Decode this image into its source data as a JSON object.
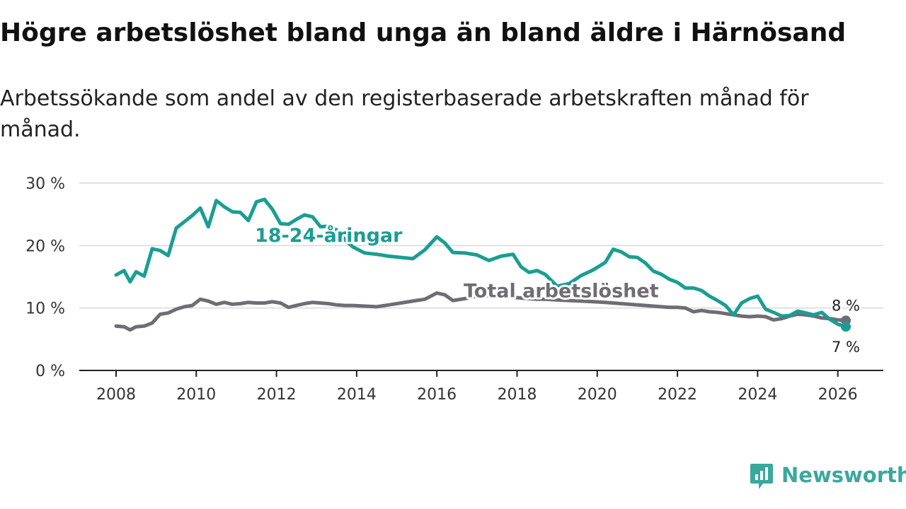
{
  "title": "Högre arbetslöshet bland unga än bland äldre i Härnösand",
  "subtitle": "Arbetssökande som andel av den registerbaserade arbetskraften månad för månad.",
  "brand": {
    "name": "Newsworthy",
    "icon": "newsworthy-logo-icon",
    "color": "#3aa89d"
  },
  "chart_data": {
    "type": "line",
    "title": "Högre arbetslöshet bland unga än bland äldre i Härnösand",
    "subtitle": "Arbetssökande som andel av den registerbaserade arbetskraften månad för månad.",
    "xlabel": "",
    "ylabel": "",
    "xlim": [
      2008,
      2026.2
    ],
    "ylim": [
      0,
      30
    ],
    "grid": true,
    "y_ticks": [
      {
        "value": 0,
        "label": "0 %"
      },
      {
        "value": 10,
        "label": "10 %"
      },
      {
        "value": 20,
        "label": "20 %"
      },
      {
        "value": 30,
        "label": "30 %"
      }
    ],
    "x_ticks": [
      {
        "value": 2008,
        "label": "2008"
      },
      {
        "value": 2010,
        "label": "2010"
      },
      {
        "value": 2012,
        "label": "2012"
      },
      {
        "value": 2014,
        "label": "2014"
      },
      {
        "value": 2016,
        "label": "2016"
      },
      {
        "value": 2018,
        "label": "2018"
      },
      {
        "value": 2020,
        "label": "2020"
      },
      {
        "value": 2022,
        "label": "2022"
      },
      {
        "value": 2024,
        "label": "2024"
      },
      {
        "value": 2026,
        "label": "2026"
      }
    ],
    "series": [
      {
        "name": "18-24-åringar",
        "label": "18-24-åringar",
        "color": "#1a9e92",
        "end_label": "7 %",
        "x": [
          2008.0,
          2008.2,
          2008.35,
          2008.5,
          2008.7,
          2008.9,
          2009.1,
          2009.3,
          2009.5,
          2009.7,
          2009.9,
          2010.1,
          2010.3,
          2010.5,
          2010.7,
          2010.9,
          2011.1,
          2011.3,
          2011.5,
          2011.7,
          2011.9,
          2012.1,
          2012.3,
          2012.5,
          2012.7,
          2012.9,
          2013.1,
          2013.3,
          2013.5,
          2013.7,
          2013.9,
          2014.2,
          2014.5,
          2014.8,
          2015.1,
          2015.4,
          2015.7,
          2016.0,
          2016.2,
          2016.4,
          2016.7,
          2017.0,
          2017.3,
          2017.6,
          2017.9,
          2018.1,
          2018.3,
          2018.5,
          2018.7,
          2019.0,
          2019.3,
          2019.6,
          2019.9,
          2020.2,
          2020.4,
          2020.6,
          2020.8,
          2021.0,
          2021.2,
          2021.4,
          2021.6,
          2021.8,
          2022.0,
          2022.2,
          2022.4,
          2022.6,
          2022.8,
          2023.0,
          2023.2,
          2023.4,
          2023.6,
          2023.8,
          2024.0,
          2024.2,
          2024.4,
          2024.6,
          2024.8,
          2025.0,
          2025.2,
          2025.4,
          2025.6,
          2025.8,
          2026.0,
          2026.2
        ],
        "values": [
          15.3,
          16.0,
          14.2,
          15.8,
          15.1,
          19.5,
          19.2,
          18.4,
          22.8,
          23.8,
          24.8,
          26.0,
          23.0,
          27.2,
          26.2,
          25.4,
          25.3,
          24.0,
          27.0,
          27.4,
          25.8,
          23.5,
          23.4,
          24.2,
          24.9,
          24.6,
          23.0,
          23.1,
          22.5,
          21.0,
          19.8,
          18.8,
          18.6,
          18.3,
          18.1,
          17.9,
          19.3,
          21.4,
          20.4,
          18.9,
          18.8,
          18.5,
          17.6,
          18.3,
          18.6,
          16.6,
          15.7,
          16.0,
          15.4,
          13.5,
          13.9,
          15.2,
          16.1,
          17.3,
          19.4,
          19.0,
          18.2,
          18.1,
          17.2,
          15.9,
          15.4,
          14.6,
          14.1,
          13.2,
          13.2,
          12.8,
          11.9,
          11.2,
          10.4,
          8.9,
          10.8,
          11.5,
          11.9,
          9.8,
          9.3,
          8.7,
          8.8,
          9.5,
          9.2,
          8.9,
          9.3,
          8.2,
          7.4,
          7.0
        ]
      },
      {
        "name": "Total arbetslöshet",
        "label": "Total arbetslöshet",
        "color": "#6f6c74",
        "end_label": "8 %",
        "x": [
          2008.0,
          2008.2,
          2008.35,
          2008.5,
          2008.7,
          2008.9,
          2009.1,
          2009.3,
          2009.5,
          2009.7,
          2009.9,
          2010.1,
          2010.3,
          2010.5,
          2010.7,
          2010.9,
          2011.1,
          2011.3,
          2011.5,
          2011.7,
          2011.9,
          2012.1,
          2012.3,
          2012.5,
          2012.7,
          2012.9,
          2013.1,
          2013.3,
          2013.5,
          2013.7,
          2013.9,
          2014.2,
          2014.5,
          2014.8,
          2015.1,
          2015.4,
          2015.7,
          2016.0,
          2016.2,
          2016.4,
          2016.7,
          2017.0,
          2017.3,
          2017.6,
          2017.9,
          2018.1,
          2018.3,
          2018.5,
          2018.7,
          2019.0,
          2019.3,
          2019.6,
          2019.9,
          2020.2,
          2020.4,
          2020.6,
          2020.8,
          2021.0,
          2021.2,
          2021.4,
          2021.6,
          2021.8,
          2022.0,
          2022.2,
          2022.4,
          2022.6,
          2022.8,
          2023.0,
          2023.2,
          2023.4,
          2023.6,
          2023.8,
          2024.0,
          2024.2,
          2024.4,
          2024.6,
          2024.8,
          2025.0,
          2025.2,
          2025.4,
          2025.6,
          2025.8,
          2026.0,
          2026.2
        ],
        "values": [
          7.1,
          7.0,
          6.5,
          7.0,
          7.1,
          7.6,
          9.0,
          9.2,
          9.8,
          10.2,
          10.4,
          11.4,
          11.1,
          10.6,
          10.9,
          10.6,
          10.7,
          10.9,
          10.8,
          10.8,
          11.0,
          10.8,
          10.1,
          10.4,
          10.7,
          10.9,
          10.8,
          10.7,
          10.5,
          10.4,
          10.4,
          10.3,
          10.2,
          10.5,
          10.8,
          11.1,
          11.4,
          12.4,
          12.1,
          11.2,
          11.5,
          11.9,
          12.0,
          11.8,
          11.7,
          11.6,
          11.5,
          11.4,
          11.4,
          11.3,
          11.2,
          11.1,
          11.0,
          10.9,
          10.8,
          10.7,
          10.6,
          10.5,
          10.4,
          10.3,
          10.2,
          10.1,
          10.1,
          10.0,
          9.4,
          9.6,
          9.4,
          9.3,
          9.1,
          8.9,
          8.7,
          8.6,
          8.7,
          8.6,
          8.1,
          8.3,
          8.7,
          9.0,
          8.9,
          8.7,
          8.4,
          8.3,
          8.1,
          8.0
        ]
      }
    ],
    "annotations": [
      {
        "text": "18-24-åringar",
        "x": 2013.3,
        "y": 20.6,
        "series": "18-24-åringar"
      },
      {
        "text": "Total arbetslöshet",
        "x": 2019.1,
        "y": 11.7,
        "series": "Total arbetslöshet"
      }
    ]
  }
}
